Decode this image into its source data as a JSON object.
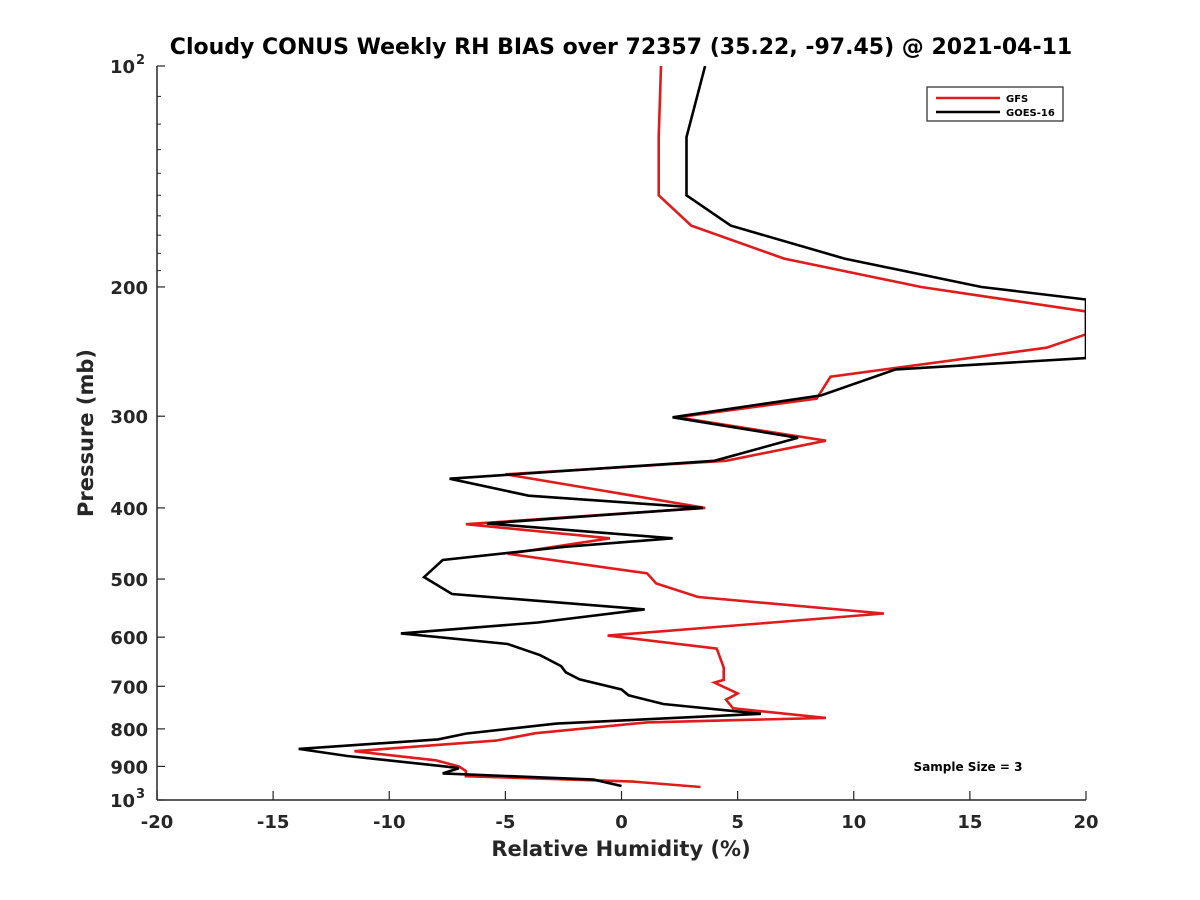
{
  "chart_data": {
    "type": "line",
    "title": "Cloudy CONUS Weekly RH BIAS over 72357 (35.22, -97.45) @ 2021-04-11",
    "xlabel": "Relative Humidity (%)",
    "ylabel": "Pressure (mb)",
    "xlim": [
      -20,
      20
    ],
    "ylim": [
      100,
      1000
    ],
    "y_scale": "log",
    "y_reversed": true,
    "x_ticks": [
      "-20",
      "-15",
      "-10",
      "-5",
      "0",
      "5",
      "10",
      "15",
      "20"
    ],
    "y_ticks": [
      {
        "value": 100,
        "base": "10",
        "exp": "2"
      },
      {
        "value": 200,
        "label": "200"
      },
      {
        "value": 300,
        "label": "300"
      },
      {
        "value": 400,
        "label": "400"
      },
      {
        "value": 500,
        "label": "500"
      },
      {
        "value": 600,
        "label": "600"
      },
      {
        "value": 700,
        "label": "700"
      },
      {
        "value": 800,
        "label": "800"
      },
      {
        "value": 900,
        "label": "900"
      },
      {
        "value": 1000,
        "base": "10",
        "exp": "3"
      }
    ],
    "grid": false,
    "legend_position": "top-right",
    "annotation": "Sample Size = 3",
    "series": [
      {
        "name": "GFS",
        "color": "#e11b1b",
        "points": [
          [
            1.7,
            100
          ],
          [
            1.6,
            125
          ],
          [
            1.6,
            150
          ],
          [
            3.0,
            165
          ],
          [
            7.0,
            183
          ],
          [
            12.9,
            200
          ],
          [
            20.0,
            216
          ],
          [
            20.0,
            232
          ],
          [
            18.3,
            242
          ],
          [
            9.0,
            265
          ],
          [
            8.4,
            284
          ],
          [
            2.4,
            301
          ],
          [
            8.8,
            324
          ],
          [
            4.5,
            345
          ],
          [
            -5.0,
            360
          ],
          [
            -1.0,
            378
          ],
          [
            3.6,
            400
          ],
          [
            -6.7,
            421
          ],
          [
            -0.5,
            440
          ],
          [
            -4.9,
            462
          ],
          [
            1.1,
            491
          ],
          [
            1.5,
            507
          ],
          [
            3.3,
            529
          ],
          [
            11.3,
            557
          ],
          [
            6.5,
            573
          ],
          [
            -0.6,
            597
          ],
          [
            4.1,
            622
          ],
          [
            4.4,
            660
          ],
          [
            4.4,
            686
          ],
          [
            4.0,
            692
          ],
          [
            5.0,
            716
          ],
          [
            4.5,
            730
          ],
          [
            4.8,
            750
          ],
          [
            8.8,
            773
          ],
          [
            1.1,
            784
          ],
          [
            -3.7,
            811
          ],
          [
            -5.4,
            830
          ],
          [
            -11.5,
            858
          ],
          [
            -8.0,
            883
          ],
          [
            -7.0,
            900
          ],
          [
            -6.7,
            913
          ],
          [
            -6.7,
            928
          ],
          [
            0.5,
            944
          ],
          [
            3.4,
            960
          ]
        ]
      },
      {
        "name": "GOES-16",
        "color": "#000000",
        "points": [
          [
            3.6,
            100
          ],
          [
            2.8,
            125
          ],
          [
            2.8,
            150
          ],
          [
            4.7,
            165
          ],
          [
            9.6,
            183
          ],
          [
            15.5,
            200
          ],
          [
            20.0,
            208
          ],
          [
            20.0,
            250
          ],
          [
            11.8,
            259
          ],
          [
            8.6,
            281
          ],
          [
            2.2,
            301
          ],
          [
            7.6,
            321
          ],
          [
            4.0,
            345
          ],
          [
            -7.4,
            365
          ],
          [
            -4.0,
            385
          ],
          [
            3.5,
            400
          ],
          [
            -5.8,
            420
          ],
          [
            2.2,
            440
          ],
          [
            -2.5,
            452
          ],
          [
            -7.7,
            471
          ],
          [
            -8.5,
            497
          ],
          [
            -7.3,
            524
          ],
          [
            1.0,
            550
          ],
          [
            -3.6,
            573
          ],
          [
            -9.5,
            593
          ],
          [
            -4.9,
            613
          ],
          [
            -3.5,
            635
          ],
          [
            -2.6,
            657
          ],
          [
            -2.4,
            670
          ],
          [
            -1.8,
            685
          ],
          [
            0.0,
            707
          ],
          [
            0.3,
            720
          ],
          [
            1.8,
            740
          ],
          [
            6.0,
            763
          ],
          [
            -2.8,
            787
          ],
          [
            -6.7,
            812
          ],
          [
            -7.9,
            827
          ],
          [
            -13.9,
            852
          ],
          [
            -11.8,
            871
          ],
          [
            -7.6,
            900
          ],
          [
            -7.0,
            905
          ],
          [
            -7.7,
            920
          ],
          [
            -1.2,
            938
          ],
          [
            0.0,
            957
          ]
        ]
      }
    ]
  }
}
